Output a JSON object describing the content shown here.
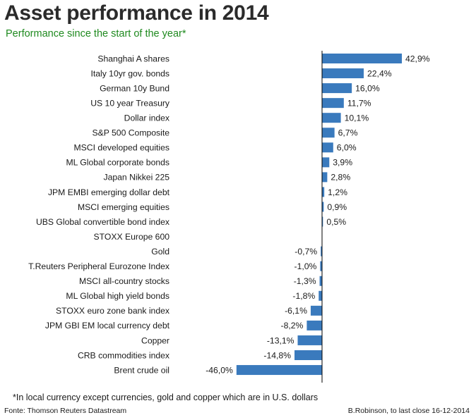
{
  "chart_data": {
    "type": "bar",
    "orientation": "horizontal",
    "title": "Asset performance in 2014",
    "subtitle": "Performance since the start of the year*",
    "categories": [
      "Shanghai A shares",
      "Italy 10yr gov. bonds",
      "German 10y Bund",
      "US 10 year Treasury",
      "Dollar index",
      "S&P 500 Composite",
      "MSCI developed equities",
      "ML Global corporate bonds",
      "Japan Nikkei 225",
      "JPM EMBI emerging dollar debt",
      "MSCI emerging equities",
      "UBS Global convertible bond index",
      "STOXX Europe 600",
      "Gold",
      "T.Reuters Peripheral Eurozone Index",
      "MSCI all-country stocks",
      "ML Global high yield bonds",
      "STOXX euro zone bank index",
      "JPM GBI EM local currency debt",
      "Copper",
      "CRB commodities index",
      "Brent crude oil"
    ],
    "values": [
      42.9,
      22.4,
      16.0,
      11.7,
      10.1,
      6.7,
      6.0,
      3.9,
      2.8,
      1.2,
      0.9,
      0.5,
      null,
      -0.7,
      -1.0,
      -1.3,
      -1.8,
      -6.1,
      -8.2,
      -13.1,
      -14.8,
      -46.0
    ],
    "value_labels": [
      "42,9%",
      "22,4%",
      "16,0%",
      "11,7%",
      "10,1%",
      "6,7%",
      "6,0%",
      "3,9%",
      "2,8%",
      "1,2%",
      "0,9%",
      "0,5%",
      "",
      "-0,7%",
      "-1,0%",
      "-1,3%",
      "-1,8%",
      "-6,1%",
      "-8,2%",
      "-13,1%",
      "-14,8%",
      "-46,0%"
    ],
    "xlim": [
      -46.0,
      42.9
    ],
    "grid": false,
    "bar_color": "#3a7abd",
    "axis_color": "#000000"
  },
  "footnote": "*In local currency except currencies, gold and copper which are in U.S. dollars",
  "source": "Fonte: Thomson Reuters Datastream",
  "credit": "B.Robinson, to last close 16-12-2014"
}
